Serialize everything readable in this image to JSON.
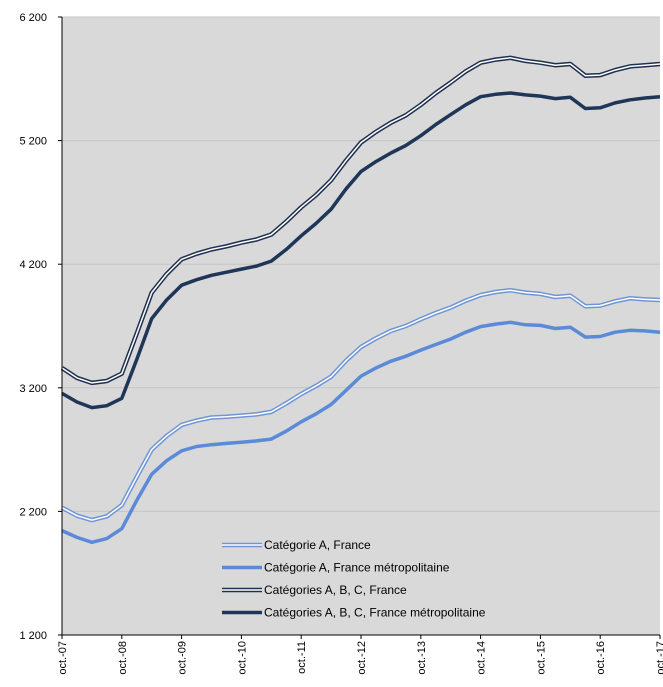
{
  "chart_data": {
    "type": "line",
    "title": "",
    "xlabel": "",
    "ylabel": "",
    "ylim": [
      1200,
      6200
    ],
    "yticks": [
      1200,
      2200,
      3200,
      4200,
      5200,
      6200
    ],
    "ytick_labels": [
      "1 200",
      "2 200",
      "3 200",
      "4 200",
      "5 200",
      "6 200"
    ],
    "xlim": [
      2007.75,
      2017.75
    ],
    "xticks": [
      2007.75,
      2008.75,
      2009.75,
      2010.75,
      2011.75,
      2012.75,
      2013.75,
      2014.75,
      2015.75,
      2016.75,
      2017.75
    ],
    "xtick_labels": [
      "oct.-07",
      "oct.-08",
      "oct.-09",
      "oct.-10",
      "oct.-11",
      "oct.-12",
      "oct.-13",
      "oct.-14",
      "oct.-15",
      "oct.-16",
      "oct.-17"
    ],
    "grid": true,
    "legend_position": "bottom-center",
    "plot_background": "#d9d9d9",
    "series": [
      {
        "name": "Catégorie A, France",
        "color": "#6f95d5",
        "style": "double-light",
        "x": [
          2007.75,
          2008.0,
          2008.25,
          2008.5,
          2008.75,
          2009.0,
          2009.25,
          2009.5,
          2009.75,
          2010.0,
          2010.25,
          2010.5,
          2010.75,
          2011.0,
          2011.25,
          2011.5,
          2011.75,
          2012.0,
          2012.25,
          2012.5,
          2012.75,
          2013.0,
          2013.25,
          2013.5,
          2013.75,
          2014.0,
          2014.25,
          2014.5,
          2014.75,
          2015.0,
          2015.25,
          2015.5,
          2015.75,
          2016.0,
          2016.25,
          2016.5,
          2016.75,
          2017.0,
          2017.25,
          2017.5,
          2017.75
        ],
        "values": [
          2230,
          2165,
          2130,
          2160,
          2250,
          2480,
          2700,
          2810,
          2900,
          2935,
          2960,
          2965,
          2975,
          2985,
          3005,
          3075,
          3150,
          3215,
          3290,
          3420,
          3530,
          3600,
          3660,
          3700,
          3755,
          3805,
          3850,
          3905,
          3950,
          3975,
          3990,
          3970,
          3960,
          3935,
          3945,
          3860,
          3865,
          3900,
          3925,
          3915,
          3910
        ]
      },
      {
        "name": "Catégorie A, France métropolitaine",
        "color": "#5b8ad8",
        "style": "thick",
        "x": [
          2007.75,
          2008.0,
          2008.25,
          2008.5,
          2008.75,
          2009.0,
          2009.25,
          2009.5,
          2009.75,
          2010.0,
          2010.25,
          2010.5,
          2010.75,
          2011.0,
          2011.25,
          2011.5,
          2011.75,
          2012.0,
          2012.25,
          2012.5,
          2012.75,
          2013.0,
          2013.25,
          2013.5,
          2013.75,
          2014.0,
          2014.25,
          2014.5,
          2014.75,
          2015.0,
          2015.25,
          2015.5,
          2015.75,
          2016.0,
          2016.25,
          2016.5,
          2016.75,
          2017.0,
          2017.25,
          2017.5,
          2017.75
        ],
        "values": [
          2045,
          1990,
          1950,
          1980,
          2060,
          2290,
          2500,
          2610,
          2690,
          2725,
          2740,
          2750,
          2760,
          2770,
          2785,
          2850,
          2925,
          2990,
          3065,
          3180,
          3295,
          3360,
          3415,
          3455,
          3505,
          3550,
          3595,
          3650,
          3695,
          3715,
          3730,
          3710,
          3705,
          3680,
          3690,
          3610,
          3615,
          3650,
          3665,
          3660,
          3650
        ]
      },
      {
        "name": "Catégories A, B, C, France",
        "color": "#1f2f4f",
        "style": "double-dark",
        "x": [
          2007.75,
          2008.0,
          2008.25,
          2008.5,
          2008.75,
          2009.0,
          2009.25,
          2009.5,
          2009.75,
          2010.0,
          2010.25,
          2010.5,
          2010.75,
          2011.0,
          2011.25,
          2011.5,
          2011.75,
          2012.0,
          2012.25,
          2012.5,
          2012.75,
          2013.0,
          2013.25,
          2013.5,
          2013.75,
          2014.0,
          2014.25,
          2014.5,
          2014.75,
          2015.0,
          2015.25,
          2015.5,
          2015.75,
          2016.0,
          2016.25,
          2016.5,
          2016.75,
          2017.0,
          2017.25,
          2017.5,
          2017.75
        ],
        "values": [
          3360,
          3280,
          3240,
          3255,
          3315,
          3640,
          3970,
          4120,
          4240,
          4285,
          4320,
          4345,
          4375,
          4400,
          4440,
          4545,
          4660,
          4760,
          4880,
          5040,
          5185,
          5270,
          5345,
          5405,
          5490,
          5585,
          5670,
          5760,
          5830,
          5855,
          5870,
          5845,
          5830,
          5810,
          5820,
          5725,
          5730,
          5770,
          5800,
          5810,
          5820
        ]
      },
      {
        "name": "Catégories A, B, C, France métropolitaine",
        "color": "#1f3658",
        "style": "thick",
        "x": [
          2007.75,
          2008.0,
          2008.25,
          2008.5,
          2008.75,
          2009.0,
          2009.25,
          2009.5,
          2009.75,
          2010.0,
          2010.25,
          2010.5,
          2010.75,
          2011.0,
          2011.25,
          2011.5,
          2011.75,
          2012.0,
          2012.25,
          2012.5,
          2012.75,
          2013.0,
          2013.25,
          2013.5,
          2013.75,
          2014.0,
          2014.25,
          2014.5,
          2014.75,
          2015.0,
          2015.25,
          2015.5,
          2015.75,
          2016.0,
          2016.25,
          2016.5,
          2016.75,
          2017.0,
          2017.25,
          2017.5,
          2017.75
        ],
        "values": [
          3155,
          3085,
          3040,
          3055,
          3115,
          3430,
          3760,
          3910,
          4030,
          4075,
          4110,
          4135,
          4160,
          4185,
          4225,
          4320,
          4430,
          4530,
          4645,
          4810,
          4950,
          5030,
          5100,
          5160,
          5240,
          5330,
          5410,
          5490,
          5555,
          5575,
          5585,
          5570,
          5560,
          5540,
          5550,
          5460,
          5465,
          5505,
          5530,
          5545,
          5555
        ]
      }
    ]
  }
}
